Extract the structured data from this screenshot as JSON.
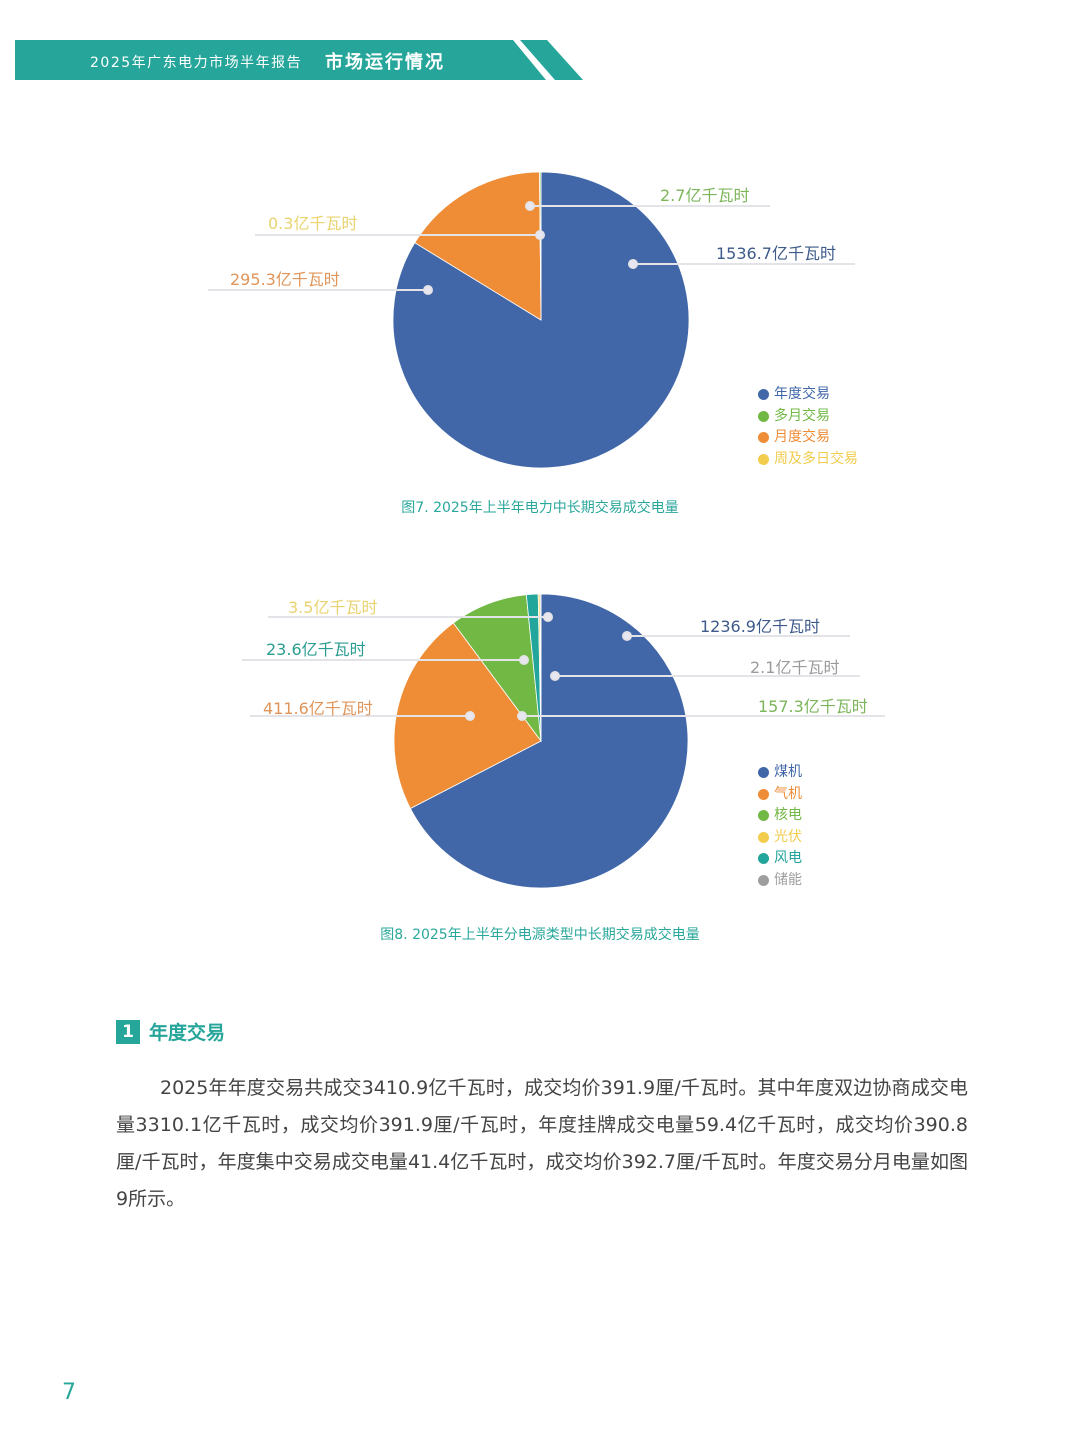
{
  "header": {
    "report_title": "2025年广东电力市场半年报告",
    "section_title": "市场运行情况",
    "ribbon_color": "#26a69a"
  },
  "figure7": {
    "caption": "图7. 2025年上半年电力中长期交易成交电量",
    "labels": {
      "annual": "1536.7亿千瓦时",
      "multi_month": "2.7亿千瓦时",
      "monthly": "295.3亿千瓦时",
      "weekly": "0.3亿千瓦时"
    },
    "legend": [
      "年度交易",
      "多月交易",
      "月度交易",
      "周及多日交易"
    ]
  },
  "figure8": {
    "caption": "图8. 2025年上半年分电源类型中长期交易成交电量",
    "labels": {
      "coal": "1236.9亿千瓦时",
      "gas": "411.6亿千瓦时",
      "nuclear": "157.3亿千瓦时",
      "solar": "3.5亿千瓦时",
      "wind": "23.6亿千瓦时",
      "storage": "2.1亿千瓦时"
    },
    "legend": [
      "煤机",
      "气机",
      "核电",
      "光伏",
      "风电",
      "储能"
    ]
  },
  "section": {
    "number": "1",
    "title": "年度交易",
    "paragraph": "2025年年度交易共成交3410.9亿千瓦时，成交均价391.9厘/千瓦时。其中年度双边协商成交电量3310.1亿千瓦时，成交均价391.9厘/千瓦时，年度挂牌成交电量59.4亿千瓦时，成交均价390.8厘/千瓦时，年度集中交易成交电量41.4亿千瓦时，成交均价392.7厘/千瓦时。年度交易分月电量如图9所示。"
  },
  "page_number": "7",
  "colors": {
    "blue": "#4167a8",
    "orange": "#ef8c36",
    "green": "#72b844",
    "yellow": "#f2cd4d",
    "teal": "#22a59a",
    "gray": "#9e9e9e",
    "caption": "#2aa79b"
  },
  "chart_data": [
    {
      "type": "pie",
      "title": "图7. 2025年上半年电力中长期交易成交电量",
      "unit": "亿千瓦时",
      "categories": [
        "年度交易",
        "多月交易",
        "月度交易",
        "周及多日交易"
      ],
      "values": [
        1536.7,
        2.7,
        295.3,
        0.3
      ],
      "colors": [
        "#4167a8",
        "#72b844",
        "#ef8c36",
        "#f2cd4d"
      ],
      "legend_position": "right-bottom"
    },
    {
      "type": "pie",
      "title": "图8. 2025年上半年分电源类型中长期交易成交电量",
      "unit": "亿千瓦时",
      "categories": [
        "煤机",
        "气机",
        "核电",
        "光伏",
        "风电",
        "储能"
      ],
      "values": [
        1236.9,
        411.6,
        157.3,
        3.5,
        23.6,
        2.1
      ],
      "colors": [
        "#4167a8",
        "#ef8c36",
        "#72b844",
        "#f2cd4d",
        "#22a59a",
        "#9e9e9e"
      ],
      "legend_position": "right-bottom"
    }
  ]
}
